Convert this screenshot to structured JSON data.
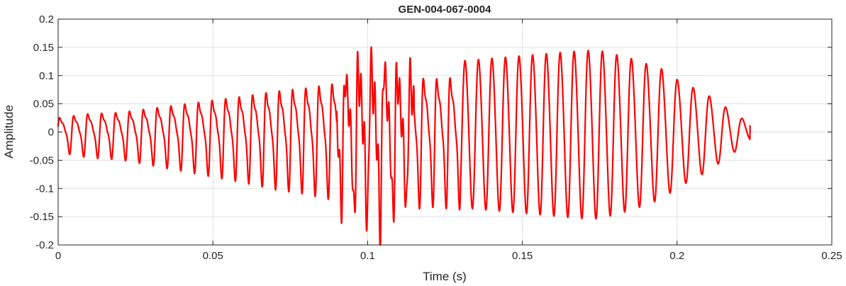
{
  "chart_data": {
    "type": "line",
    "title": "GEN-004-067-0004",
    "xlabel": "Time (s)",
    "ylabel": "Amplitude",
    "xlim": [
      0,
      0.25
    ],
    "ylim": [
      -0.2,
      0.2
    ],
    "xticks": [
      0,
      0.05,
      0.1,
      0.15,
      0.2,
      0.25
    ],
    "xtick_labels": [
      "0",
      "0.05",
      "0.1",
      "0.15",
      "0.2",
      "0.25"
    ],
    "yticks": [
      -0.2,
      -0.15,
      -0.1,
      -0.05,
      0,
      0.05,
      0.1,
      0.15,
      0.2
    ],
    "ytick_labels": [
      "-0.2",
      "-0.15",
      "-0.1",
      "-0.05",
      "0",
      "0.05",
      "0.1",
      "0.15",
      "0.2"
    ],
    "grid": true,
    "series": [
      {
        "color": "#ff0000",
        "duration": 0.2236,
        "envelope": [
          [
            0,
            0.035
          ],
          [
            0.01,
            0.045
          ],
          [
            0.02,
            0.048
          ],
          [
            0.03,
            0.058
          ],
          [
            0.04,
            0.068
          ],
          [
            0.05,
            0.078
          ],
          [
            0.06,
            0.088
          ],
          [
            0.07,
            0.1
          ],
          [
            0.08,
            0.108
          ],
          [
            0.09,
            0.12
          ],
          [
            0.095,
            0.15
          ],
          [
            0.1,
            0.16
          ],
          [
            0.105,
            0.165
          ],
          [
            0.11,
            0.14
          ],
          [
            0.12,
            0.13
          ],
          [
            0.13,
            0.135
          ],
          [
            0.14,
            0.14
          ],
          [
            0.15,
            0.145
          ],
          [
            0.16,
            0.15
          ],
          [
            0.17,
            0.155
          ],
          [
            0.175,
            0.155
          ],
          [
            0.185,
            0.14
          ],
          [
            0.195,
            0.12
          ],
          [
            0.2,
            0.1
          ],
          [
            0.21,
            0.07
          ],
          [
            0.22,
            0.03
          ],
          [
            0.2236,
            0.015
          ]
        ],
        "frequency_hz": [
          [
            0,
            220
          ],
          [
            0.04,
            225
          ],
          [
            0.08,
            235
          ],
          [
            0.1,
            240
          ],
          [
            0.12,
            232
          ],
          [
            0.15,
            228
          ],
          [
            0.18,
            215
          ],
          [
            0.2,
            195
          ],
          [
            0.2236,
            185
          ]
        ],
        "end_value": 0.012
      }
    ]
  }
}
